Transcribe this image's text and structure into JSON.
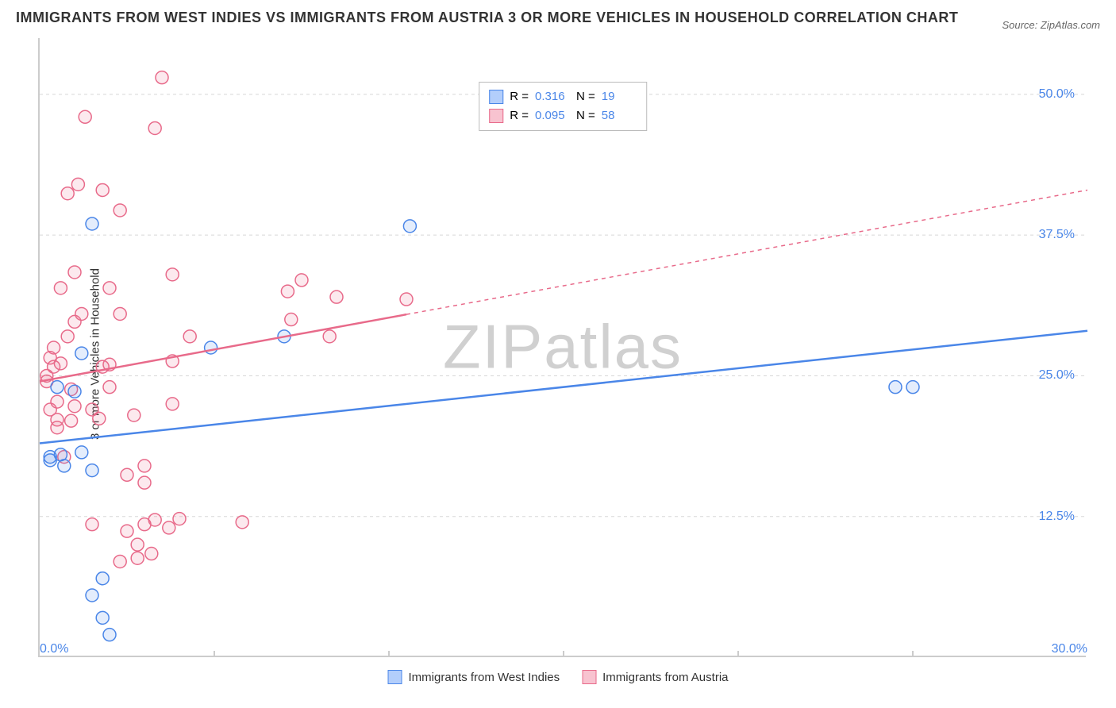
{
  "title": "IMMIGRANTS FROM WEST INDIES VS IMMIGRANTS FROM AUSTRIA 3 OR MORE VEHICLES IN HOUSEHOLD CORRELATION CHART",
  "source": "Source: ZipAtlas.com",
  "yaxis_title": "3 or more Vehicles in Household",
  "watermark_a": "ZIP",
  "watermark_b": "atlas",
  "colors": {
    "blue_stroke": "#4a86e8",
    "blue_fill": "#b3cefb",
    "pink_stroke": "#e86a8a",
    "pink_fill": "#f8c3d0",
    "grid": "#d8d8d8",
    "axis": "#cccccc",
    "text": "#333333"
  },
  "chart": {
    "type": "scatter-with-trendlines",
    "xlim": [
      0,
      30
    ],
    "ylim": [
      0,
      55
    ],
    "yticks": [
      12.5,
      25.0,
      37.5,
      50.0
    ],
    "ytick_labels": [
      "12.5%",
      "25.0%",
      "37.5%",
      "50.0%"
    ],
    "xtick_major": [
      0,
      30
    ],
    "xtick_labels": [
      "0.0%",
      "30.0%"
    ],
    "xtick_minor": [
      5,
      10,
      15,
      20,
      25
    ],
    "marker_radius": 8,
    "line_width": 2.5,
    "series": [
      {
        "name": "Immigrants from West Indies",
        "key": "west_indies",
        "color": "#4a86e8",
        "fill": "#b3cefb",
        "r_value": "0.316",
        "n_value": "19",
        "trend": {
          "x1": 0,
          "y1": 19.0,
          "x2": 30,
          "y2": 29.0,
          "dashed_from_x": null
        },
        "points": [
          [
            0.3,
            17.5
          ],
          [
            0.3,
            17.8
          ],
          [
            0.5,
            24.0
          ],
          [
            0.6,
            18.0
          ],
          [
            0.7,
            17.0
          ],
          [
            1.0,
            23.6
          ],
          [
            1.2,
            27.0
          ],
          [
            1.2,
            18.2
          ],
          [
            1.5,
            38.5
          ],
          [
            1.5,
            16.6
          ],
          [
            1.5,
            5.5
          ],
          [
            1.8,
            3.5
          ],
          [
            1.8,
            7.0
          ],
          [
            2.0,
            2.0
          ],
          [
            4.9,
            27.5
          ],
          [
            7.0,
            28.5
          ],
          [
            10.6,
            38.3
          ],
          [
            24.5,
            24.0
          ],
          [
            25.0,
            24.0
          ]
        ]
      },
      {
        "name": "Immigrants from Austria",
        "key": "austria",
        "color": "#e86a8a",
        "fill": "#f8c3d0",
        "r_value": "0.095",
        "n_value": "58",
        "trend": {
          "x1": 0,
          "y1": 24.5,
          "x2": 30,
          "y2": 41.5,
          "dashed_from_x": 10.5
        },
        "points": [
          [
            0.2,
            25.0
          ],
          [
            0.2,
            24.5
          ],
          [
            0.3,
            22.0
          ],
          [
            0.3,
            26.6
          ],
          [
            0.4,
            27.5
          ],
          [
            0.4,
            25.8
          ],
          [
            0.5,
            22.7
          ],
          [
            0.5,
            21.1
          ],
          [
            0.5,
            20.4
          ],
          [
            0.6,
            26.1
          ],
          [
            0.6,
            32.8
          ],
          [
            0.7,
            17.8
          ],
          [
            0.8,
            28.5
          ],
          [
            0.8,
            41.2
          ],
          [
            0.9,
            23.8
          ],
          [
            0.9,
            21.0
          ],
          [
            1.0,
            34.2
          ],
          [
            1.0,
            29.8
          ],
          [
            1.0,
            22.3
          ],
          [
            1.1,
            42.0
          ],
          [
            1.2,
            30.5
          ],
          [
            1.3,
            48.0
          ],
          [
            1.5,
            11.8
          ],
          [
            1.5,
            22.0
          ],
          [
            1.7,
            21.2
          ],
          [
            1.8,
            25.8
          ],
          [
            1.8,
            41.5
          ],
          [
            2.0,
            32.8
          ],
          [
            2.0,
            24.0
          ],
          [
            2.0,
            26.0
          ],
          [
            2.3,
            30.5
          ],
          [
            2.3,
            39.7
          ],
          [
            2.3,
            8.5
          ],
          [
            2.5,
            16.2
          ],
          [
            2.5,
            11.2
          ],
          [
            2.7,
            21.5
          ],
          [
            2.8,
            10.0
          ],
          [
            2.8,
            8.8
          ],
          [
            3.0,
            11.8
          ],
          [
            3.0,
            17.0
          ],
          [
            3.0,
            15.5
          ],
          [
            3.2,
            9.2
          ],
          [
            3.3,
            47.0
          ],
          [
            3.3,
            12.2
          ],
          [
            3.5,
            51.5
          ],
          [
            3.7,
            11.5
          ],
          [
            3.8,
            22.5
          ],
          [
            3.8,
            26.3
          ],
          [
            3.8,
            34.0
          ],
          [
            4.0,
            12.3
          ],
          [
            4.3,
            28.5
          ],
          [
            5.8,
            12.0
          ],
          [
            7.1,
            32.5
          ],
          [
            7.2,
            30.0
          ],
          [
            7.5,
            33.5
          ],
          [
            8.3,
            28.5
          ],
          [
            8.5,
            32.0
          ],
          [
            10.5,
            31.8
          ]
        ]
      }
    ]
  },
  "legend_labels": {
    "r": "R  =",
    "n": "N  ="
  },
  "bottom_legend": [
    "Immigrants from West Indies",
    "Immigrants from Austria"
  ]
}
